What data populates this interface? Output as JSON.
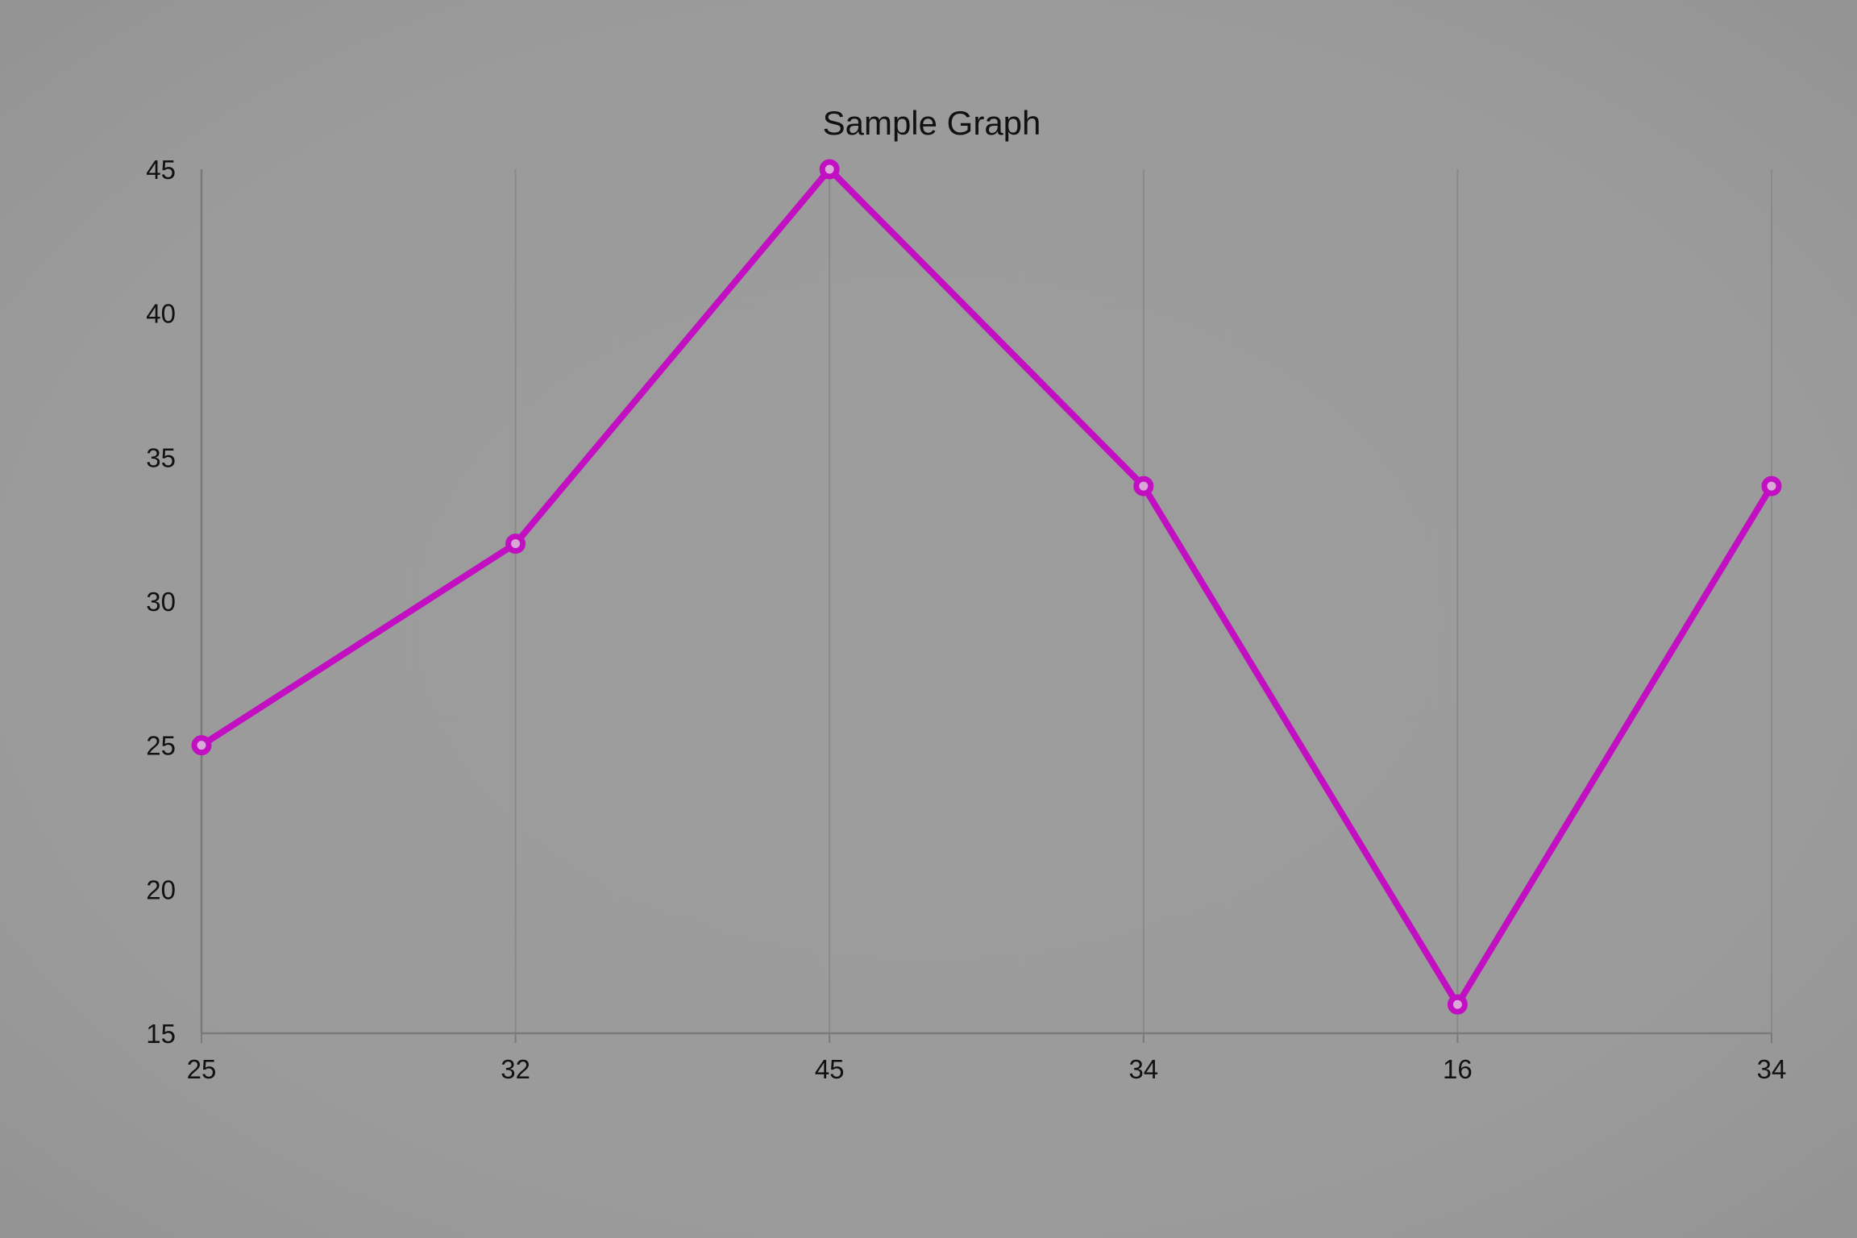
{
  "chart_data": {
    "type": "line",
    "title": "Sample Graph",
    "xlabel": "",
    "ylabel": "",
    "categories": [
      "25",
      "32",
      "45",
      "34",
      "16",
      "34"
    ],
    "series": [
      {
        "values": [
          25,
          32,
          45,
          34,
          16,
          34
        ]
      }
    ],
    "ylim": [
      15,
      45
    ],
    "yticks": [
      "15",
      "20",
      "25",
      "30",
      "35",
      "40",
      "45"
    ],
    "grid": {
      "vertical": true,
      "horizontal": false
    },
    "legend": "none",
    "colors": {
      "line": "#c20fc2",
      "marker_fill": "#d9a8d9",
      "grid": "#8a8a8a",
      "axis": "#7a7a7a",
      "text": "#111111",
      "background": "#9b9b9b"
    }
  }
}
